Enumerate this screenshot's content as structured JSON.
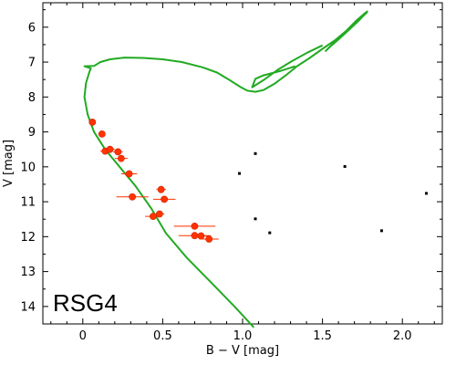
{
  "chart_data": {
    "type": "scatter",
    "title": "",
    "panel_label": "RSG4",
    "xlabel": "B − V [mag]",
    "ylabel": "V [mag]",
    "xlim": [
      -0.25,
      2.25
    ],
    "ylim": [
      14.5,
      5.3
    ],
    "y_inverted": true,
    "x_ticks": [
      0.0,
      0.5,
      1.0,
      1.5,
      2.0
    ],
    "x_tick_labels": [
      "0",
      "0.5",
      "1.0",
      "1.5",
      "2.0"
    ],
    "y_ticks": [
      6,
      7,
      8,
      9,
      10,
      11,
      12,
      13,
      14
    ],
    "y_tick_labels": [
      "6",
      "7",
      "8",
      "9",
      "10",
      "11",
      "12",
      "13",
      "14"
    ],
    "grid": false,
    "colors": {
      "members": "#ff3300",
      "isochrone": "#22aa22",
      "field": "#000000"
    },
    "series": [
      {
        "name": "",
        "kind": "errorbar-points",
        "points": [
          {
            "x": 0.06,
            "y": 8.72,
            "xerr": 0.02
          },
          {
            "x": 0.12,
            "y": 9.06,
            "xerr": 0.02
          },
          {
            "x": 0.14,
            "y": 9.55,
            "xerr": 0.03
          },
          {
            "x": 0.17,
            "y": 9.5,
            "xerr": 0.03
          },
          {
            "x": 0.22,
            "y": 9.57,
            "xerr": 0.03
          },
          {
            "x": 0.24,
            "y": 9.76,
            "xerr": 0.04
          },
          {
            "x": 0.29,
            "y": 10.2,
            "xerr": 0.05
          },
          {
            "x": 0.31,
            "y": 10.86,
            "xerr": 0.1
          },
          {
            "x": 0.49,
            "y": 10.65,
            "xerr": 0.03
          },
          {
            "x": 0.51,
            "y": 10.93,
            "xerr": 0.07
          },
          {
            "x": 0.44,
            "y": 11.42,
            "xerr": 0.05
          },
          {
            "x": 0.48,
            "y": 11.35,
            "xerr": 0.03
          },
          {
            "x": 0.7,
            "y": 11.7,
            "xerr": 0.13
          },
          {
            "x": 0.7,
            "y": 11.97,
            "xerr": 0.1
          },
          {
            "x": 0.74,
            "y": 11.98,
            "xerr": 0.06
          },
          {
            "x": 0.79,
            "y": 12.07,
            "xerr": 0.06
          }
        ]
      },
      {
        "name": "",
        "kind": "small-points",
        "points": [
          {
            "x": 1.08,
            "y": 9.62
          },
          {
            "x": 0.98,
            "y": 10.19
          },
          {
            "x": 1.64,
            "y": 9.99
          },
          {
            "x": 2.15,
            "y": 10.76
          },
          {
            "x": 1.08,
            "y": 11.49
          },
          {
            "x": 1.17,
            "y": 11.89
          },
          {
            "x": 1.87,
            "y": 11.83
          }
        ]
      },
      {
        "name": "",
        "kind": "line",
        "points": [
          [
            1.07,
            14.6
          ],
          [
            0.95,
            14.0
          ],
          [
            0.8,
            13.3
          ],
          [
            0.65,
            12.6
          ],
          [
            0.52,
            11.9
          ],
          [
            0.43,
            11.2
          ],
          [
            0.33,
            10.55
          ],
          [
            0.23,
            10.0
          ],
          [
            0.14,
            9.5
          ],
          [
            0.07,
            9.0
          ],
          [
            0.03,
            8.5
          ],
          [
            0.01,
            8.0
          ],
          [
            0.02,
            7.6
          ],
          [
            0.04,
            7.3
          ],
          [
            0.05,
            7.18
          ],
          [
            0.01,
            7.12
          ],
          [
            0.07,
            7.11
          ],
          [
            0.11,
            7.0
          ],
          [
            0.17,
            6.92
          ],
          [
            0.26,
            6.87
          ],
          [
            0.38,
            6.88
          ],
          [
            0.5,
            6.92
          ],
          [
            0.62,
            7.0
          ],
          [
            0.75,
            7.15
          ],
          [
            0.84,
            7.3
          ],
          [
            0.92,
            7.52
          ],
          [
            0.99,
            7.72
          ],
          [
            1.03,
            7.82
          ],
          [
            1.08,
            7.85
          ],
          [
            1.13,
            7.8
          ],
          [
            1.2,
            7.62
          ],
          [
            1.27,
            7.38
          ],
          [
            1.34,
            7.12
          ],
          [
            1.42,
            6.88
          ],
          [
            1.5,
            6.62
          ],
          [
            1.58,
            6.37
          ],
          [
            1.65,
            6.1
          ],
          [
            1.71,
            5.82
          ],
          [
            1.76,
            5.62
          ],
          [
            1.78,
            5.55
          ],
          [
            1.73,
            5.8
          ],
          [
            1.66,
            6.1
          ],
          [
            1.6,
            6.35
          ],
          [
            1.55,
            6.55
          ],
          [
            1.52,
            6.68
          ],
          [
            1.57,
            6.45
          ],
          [
            1.63,
            6.2
          ],
          [
            1.69,
            5.95
          ],
          [
            1.75,
            5.7
          ],
          [
            1.78,
            5.57
          ]
        ]
      },
      {
        "name": "",
        "kind": "line",
        "points": [
          [
            1.5,
            6.52
          ],
          [
            1.41,
            6.72
          ],
          [
            1.31,
            6.97
          ],
          [
            1.22,
            7.22
          ],
          [
            1.13,
            7.52
          ],
          [
            1.06,
            7.72
          ],
          [
            1.08,
            7.48
          ],
          [
            1.13,
            7.38
          ],
          [
            1.24,
            7.25
          ],
          [
            1.33,
            7.12
          ]
        ]
      }
    ]
  }
}
